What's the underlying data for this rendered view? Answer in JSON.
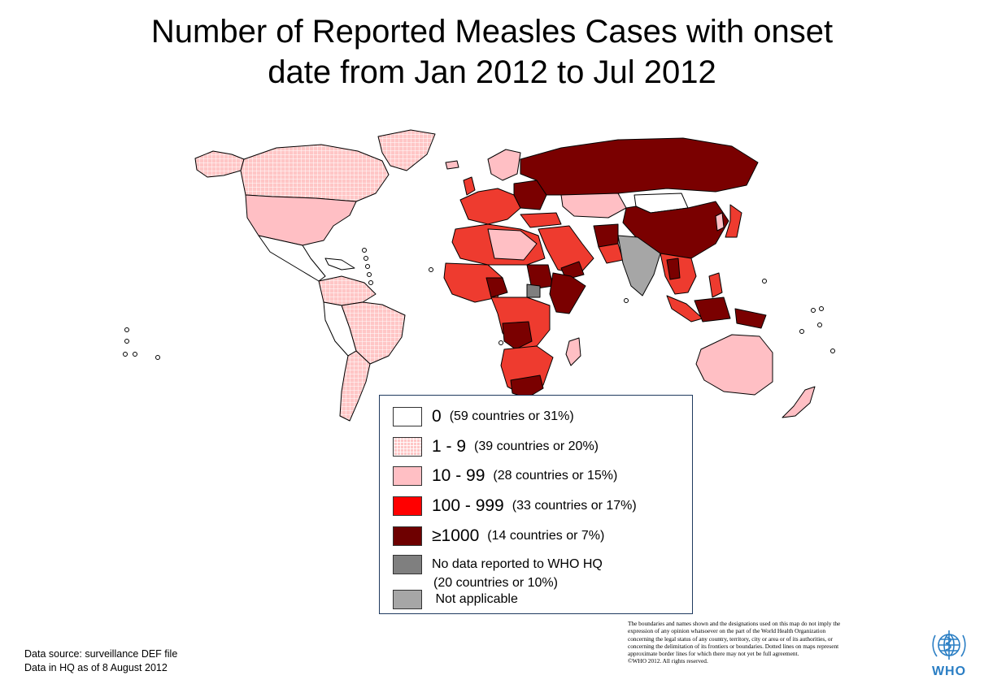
{
  "title": {
    "line1": "Number of Reported Measles Cases with onset",
    "line2": "date from Jan 2012 to Jul 2012"
  },
  "colors": {
    "zero": "#ffffff",
    "one_to_nine": "#ffc6c6",
    "ten_to_99": "#ffbfc4",
    "hundred_to_999": "#ee3b2f",
    "thousand_plus": "#7a0000",
    "no_data": "#7f7f7f",
    "not_applicable": "#a6a6a6",
    "border": "#000000"
  },
  "legend": [
    {
      "range": "0",
      "count": "(59 countries or 31%)",
      "category": "zero"
    },
    {
      "range": "1 - 9",
      "count": "(39 countries or 20%)",
      "category": "one_to_nine"
    },
    {
      "range": "10 - 99",
      "count": "(28 countries or 15%)",
      "category": "ten_to_99"
    },
    {
      "range": "100 - 999",
      "count": "(33 countries or 17%)",
      "category": "hundred_to_999"
    },
    {
      "range": "≥1000",
      "count": "(14 countries or 7%)",
      "category": "thousand_plus"
    },
    {
      "text": "No data reported to WHO HQ",
      "subtext": "(20 countries or 10%)",
      "category": "no_data"
    },
    {
      "text": " Not applicable",
      "category": "not_applicable"
    }
  ],
  "source": {
    "line1": "Data source: surveillance DEF file",
    "line2": "Data in HQ as of 8 August 2012"
  },
  "disclaimer": [
    "The boundaries and names shown and the designations used on this map do not imply the",
    "expression of any opinion whatsoever on the part of the World Health Organization",
    "concerning the legal status of any country, territory, city or area or of its authorities, or",
    "concerning the delimitation of its frontiers or boundaries.  Dotted lines on maps represent",
    "approximate border lines for which there may not yet be full agreement.",
    "©WHO 2012. All rights reserved."
  ],
  "logo": {
    "text": "WHO",
    "icon": "who-emblem-icon"
  }
}
